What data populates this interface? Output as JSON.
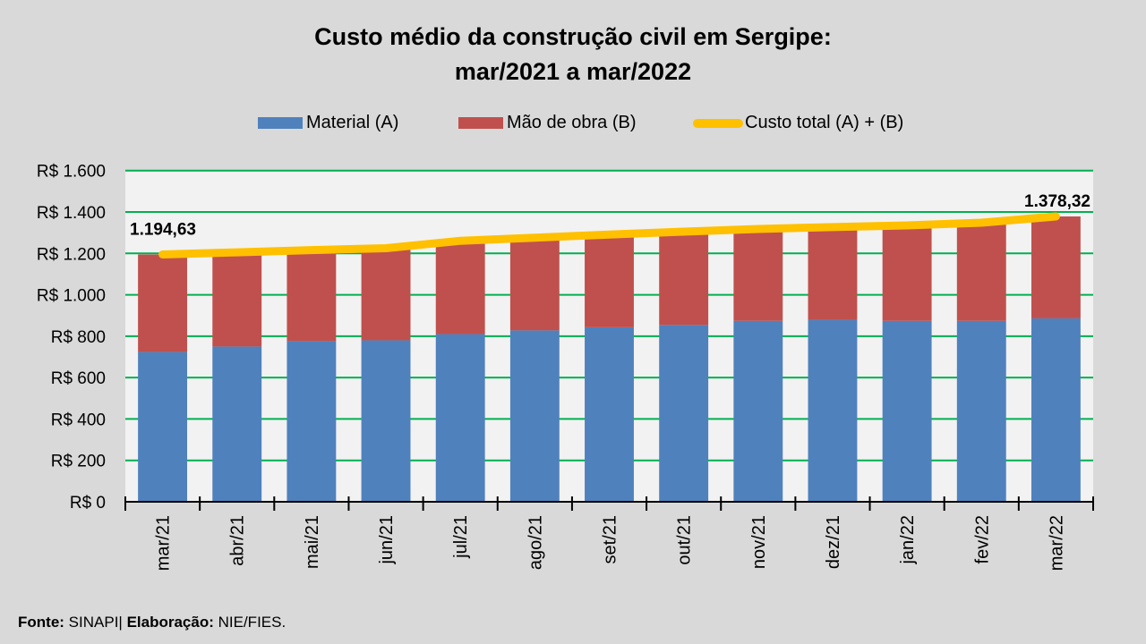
{
  "title": {
    "line1": "Custo médio da construção civil em Sergipe:",
    "line2": "mar/2021 a mar/2022"
  },
  "legend": [
    {
      "label": "Material (A)",
      "color": "#4f81bd",
      "kind": "box"
    },
    {
      "label": "Mão de obra (B)",
      "color": "#c0504d",
      "kind": "box"
    },
    {
      "label": "Custo total (A) + (B)",
      "color": "#ffc000",
      "kind": "line"
    }
  ],
  "footer": {
    "source_label": "Fonte:",
    "source_value": "SINAPI",
    "separator": "|",
    "author_label": "Elaboração:",
    "author_value": "NIE/FIES."
  },
  "colors": {
    "material": "#4f81bd",
    "labor": "#c0504d",
    "total": "#ffc000",
    "grid": "#00b050",
    "plot_bg": "#f2f2f2",
    "page_bg": "#d9d9d9"
  },
  "chart_data": {
    "type": "bar",
    "subtype": "stacked-with-line",
    "title": "Custo médio da construção civil em Sergipe: mar/2021 a mar/2022",
    "xlabel": "",
    "ylabel": "",
    "categories": [
      "mar/21",
      "abr/21",
      "mai/21",
      "jun/21",
      "jul/21",
      "ago/21",
      "set/21",
      "out/21",
      "nov/21",
      "dez/21",
      "jan/22",
      "fev/22",
      "mar/22"
    ],
    "series": [
      {
        "name": "Material (A)",
        "type": "bar",
        "values": [
          724,
          750,
          776,
          780,
          810,
          828,
          843,
          854,
          874,
          879,
          874,
          874,
          886
        ]
      },
      {
        "name": "Mão de obra (B)",
        "type": "bar",
        "values": [
          470.63,
          455,
          440,
          445,
          451,
          448,
          448,
          451,
          444,
          448,
          461,
          474,
          492.32
        ]
      },
      {
        "name": "Custo total (A) + (B)",
        "type": "line",
        "values": [
          1194.63,
          1205,
          1216,
          1225,
          1261,
          1276,
          1291,
          1305,
          1318,
          1327,
          1335,
          1348,
          1378.32
        ]
      }
    ],
    "data_labels": [
      {
        "series": "Custo total (A) + (B)",
        "category": "mar/21",
        "text": "1.194,63"
      },
      {
        "series": "Custo total (A) + (B)",
        "category": "mar/22",
        "text": "1.378,32"
      }
    ],
    "yticks": [
      "R$ 0",
      "R$ 200",
      "R$ 400",
      "R$ 600",
      "R$ 800",
      "R$ 1.000",
      "R$ 1.200",
      "R$ 1.400",
      "R$ 1.600"
    ],
    "ytick_values": [
      0,
      200,
      400,
      600,
      800,
      1000,
      1200,
      1400,
      1600
    ],
    "ylim": [
      0,
      1600
    ],
    "grid": true,
    "legend_position": "top"
  }
}
